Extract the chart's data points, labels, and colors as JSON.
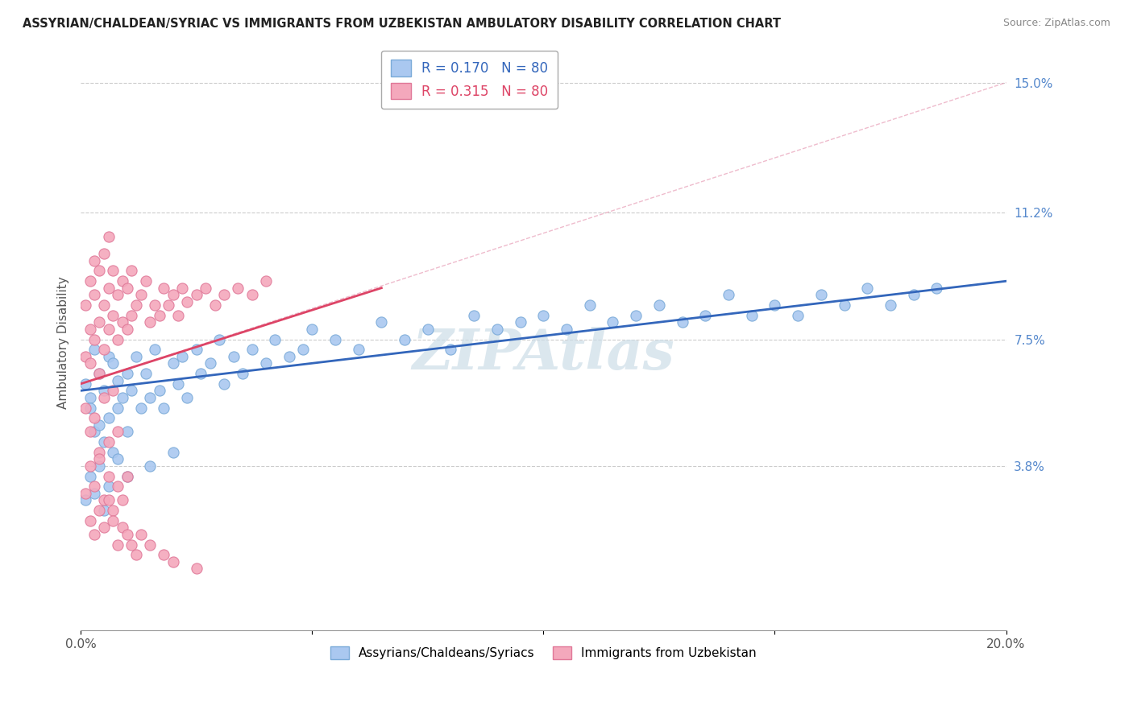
{
  "title": "ASSYRIAN/CHALDEAN/SYRIAC VS IMMIGRANTS FROM UZBEKISTAN AMBULATORY DISABILITY CORRELATION CHART",
  "source": "Source: ZipAtlas.com",
  "ylabel": "Ambulatory Disability",
  "ytick_labels": [
    "3.8%",
    "7.5%",
    "11.2%",
    "15.0%"
  ],
  "ytick_vals": [
    0.038,
    0.075,
    0.112,
    0.15
  ],
  "xlim": [
    0.0,
    0.2
  ],
  "ylim": [
    -0.01,
    0.158
  ],
  "blue_R": 0.17,
  "pink_R": 0.315,
  "N": 80,
  "blue_color": "#aac8f0",
  "pink_color": "#f4a8bc",
  "blue_edge": "#7aaad8",
  "pink_edge": "#e07898",
  "trend_blue": "#3366bb",
  "trend_pink": "#dd4466",
  "ref_line_color": "#ddbbcc",
  "watermark": "ZIPAtlas",
  "watermark_color": "#ccdde8",
  "legend_label_blue": "Assyrians/Chaldeans/Syriacs",
  "legend_label_pink": "Immigrants from Uzbekistan",
  "blue_x": [
    0.001,
    0.002,
    0.002,
    0.003,
    0.003,
    0.004,
    0.004,
    0.005,
    0.005,
    0.006,
    0.006,
    0.007,
    0.007,
    0.008,
    0.008,
    0.009,
    0.01,
    0.01,
    0.011,
    0.012,
    0.013,
    0.014,
    0.015,
    0.016,
    0.017,
    0.018,
    0.02,
    0.021,
    0.022,
    0.023,
    0.025,
    0.026,
    0.028,
    0.03,
    0.031,
    0.033,
    0.035,
    0.037,
    0.04,
    0.042,
    0.045,
    0.048,
    0.05,
    0.055,
    0.06,
    0.065,
    0.07,
    0.075,
    0.08,
    0.085,
    0.09,
    0.095,
    0.1,
    0.105,
    0.11,
    0.115,
    0.12,
    0.125,
    0.13,
    0.135,
    0.14,
    0.145,
    0.15,
    0.155,
    0.16,
    0.165,
    0.17,
    0.175,
    0.18,
    0.185,
    0.001,
    0.002,
    0.003,
    0.004,
    0.005,
    0.006,
    0.008,
    0.01,
    0.015,
    0.02
  ],
  "blue_y": [
    0.062,
    0.058,
    0.055,
    0.072,
    0.048,
    0.065,
    0.05,
    0.06,
    0.045,
    0.07,
    0.052,
    0.068,
    0.042,
    0.063,
    0.055,
    0.058,
    0.065,
    0.048,
    0.06,
    0.07,
    0.055,
    0.065,
    0.058,
    0.072,
    0.06,
    0.055,
    0.068,
    0.062,
    0.07,
    0.058,
    0.072,
    0.065,
    0.068,
    0.075,
    0.062,
    0.07,
    0.065,
    0.072,
    0.068,
    0.075,
    0.07,
    0.072,
    0.078,
    0.075,
    0.072,
    0.08,
    0.075,
    0.078,
    0.072,
    0.082,
    0.078,
    0.08,
    0.082,
    0.078,
    0.085,
    0.08,
    0.082,
    0.085,
    0.08,
    0.082,
    0.088,
    0.082,
    0.085,
    0.082,
    0.088,
    0.085,
    0.09,
    0.085,
    0.088,
    0.09,
    0.028,
    0.035,
    0.03,
    0.038,
    0.025,
    0.032,
    0.04,
    0.035,
    0.038,
    0.042
  ],
  "pink_x": [
    0.001,
    0.001,
    0.002,
    0.002,
    0.002,
    0.003,
    0.003,
    0.003,
    0.004,
    0.004,
    0.004,
    0.005,
    0.005,
    0.005,
    0.006,
    0.006,
    0.006,
    0.007,
    0.007,
    0.008,
    0.008,
    0.009,
    0.009,
    0.01,
    0.01,
    0.011,
    0.011,
    0.012,
    0.013,
    0.014,
    0.015,
    0.016,
    0.017,
    0.018,
    0.019,
    0.02,
    0.021,
    0.022,
    0.023,
    0.025,
    0.027,
    0.029,
    0.031,
    0.034,
    0.037,
    0.04,
    0.001,
    0.002,
    0.003,
    0.004,
    0.005,
    0.006,
    0.007,
    0.008,
    0.001,
    0.002,
    0.003,
    0.004,
    0.005,
    0.006,
    0.007,
    0.008,
    0.009,
    0.01,
    0.002,
    0.003,
    0.004,
    0.005,
    0.006,
    0.007,
    0.008,
    0.009,
    0.01,
    0.011,
    0.012,
    0.013,
    0.015,
    0.018,
    0.02,
    0.025
  ],
  "pink_y": [
    0.07,
    0.085,
    0.068,
    0.078,
    0.092,
    0.075,
    0.088,
    0.098,
    0.065,
    0.08,
    0.095,
    0.072,
    0.085,
    0.1,
    0.078,
    0.09,
    0.105,
    0.082,
    0.095,
    0.075,
    0.088,
    0.08,
    0.092,
    0.078,
    0.09,
    0.082,
    0.095,
    0.085,
    0.088,
    0.092,
    0.08,
    0.085,
    0.082,
    0.09,
    0.085,
    0.088,
    0.082,
    0.09,
    0.086,
    0.088,
    0.09,
    0.085,
    0.088,
    0.09,
    0.088,
    0.092,
    0.055,
    0.048,
    0.052,
    0.042,
    0.058,
    0.045,
    0.06,
    0.048,
    0.03,
    0.038,
    0.032,
    0.04,
    0.028,
    0.035,
    0.025,
    0.032,
    0.028,
    0.035,
    0.022,
    0.018,
    0.025,
    0.02,
    0.028,
    0.022,
    0.015,
    0.02,
    0.018,
    0.015,
    0.012,
    0.018,
    0.015,
    0.012,
    0.01,
    0.008
  ],
  "pink_trend_x_end": 0.065
}
